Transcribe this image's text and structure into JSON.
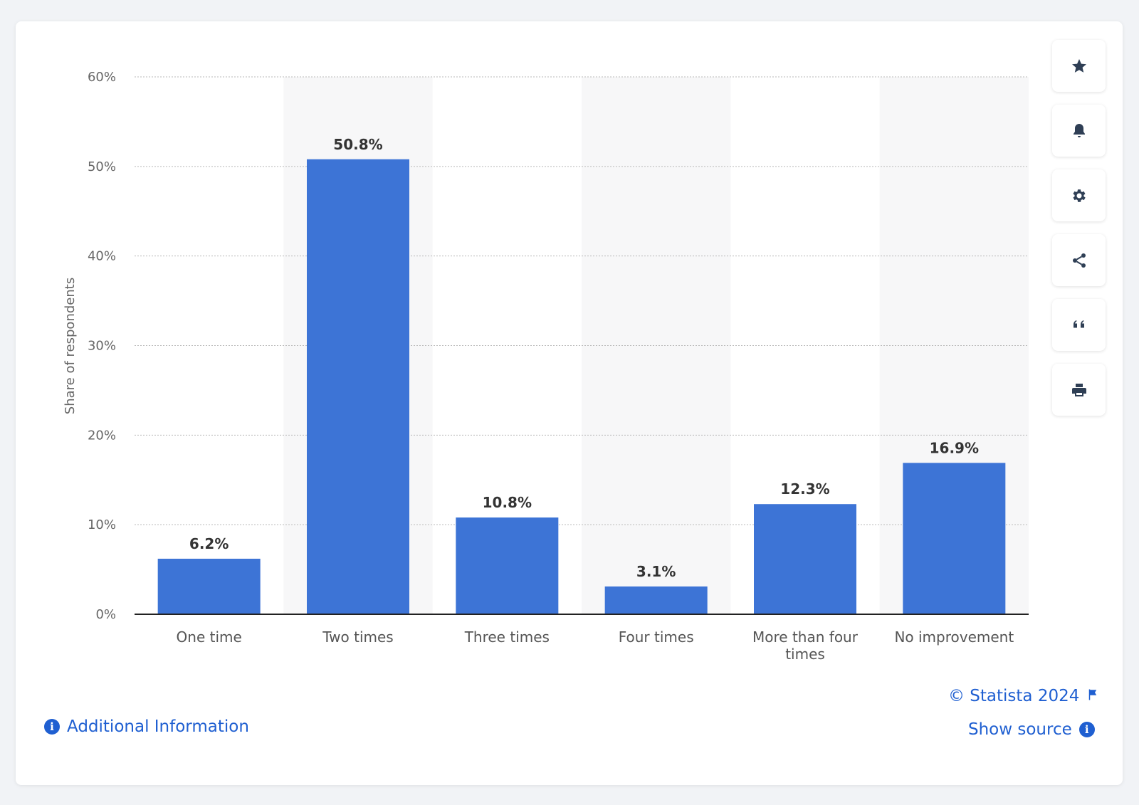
{
  "chart_data": {
    "type": "bar",
    "categories": [
      "One time",
      "Two times",
      "Three times",
      "Four times",
      "More than four times",
      "No improvement"
    ],
    "category_lines": [
      [
        "One time"
      ],
      [
        "Two times"
      ],
      [
        "Three times"
      ],
      [
        "Four times"
      ],
      [
        "More than four",
        "times"
      ],
      [
        "No improvement"
      ]
    ],
    "values": [
      6.2,
      50.8,
      10.8,
      3.1,
      12.3,
      16.9
    ],
    "value_labels": [
      "6.2%",
      "50.8%",
      "10.8%",
      "3.1%",
      "12.3%",
      "16.9%"
    ],
    "title": "",
    "xlabel": "",
    "ylabel": "Share of respondents",
    "ylim": [
      0,
      60
    ],
    "yticks": [
      0,
      10,
      20,
      30,
      40,
      50,
      60
    ],
    "ytick_labels": [
      "0%",
      "10%",
      "20%",
      "30%",
      "40%",
      "50%",
      "60%"
    ],
    "grid": true,
    "bar_color": "#3d74d6"
  },
  "toolbar": {
    "icons": [
      "star-icon",
      "bell-icon",
      "gear-icon",
      "share-icon",
      "quote-icon",
      "print-icon"
    ]
  },
  "footer": {
    "copyright": "© Statista 2024",
    "show_source": "Show source",
    "additional_info": "Additional Information"
  },
  "colors": {
    "accent": "#1f5fd1",
    "bar": "#3d74d6"
  }
}
